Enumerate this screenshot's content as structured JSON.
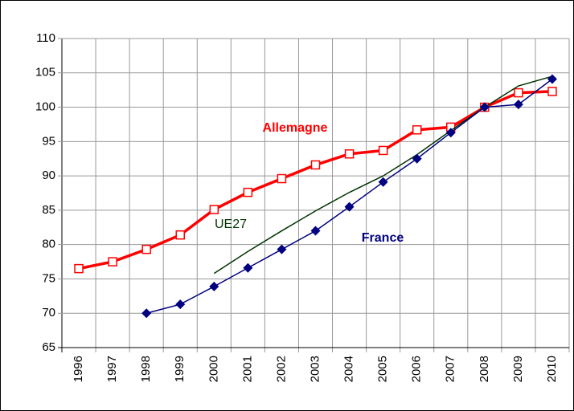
{
  "chart_data": {
    "type": "line",
    "categories": [
      "1996",
      "1997",
      "1998",
      "1999",
      "2000",
      "2001",
      "2002",
      "2003",
      "2004",
      "2005",
      "2006",
      "2007",
      "2008",
      "2009",
      "2010"
    ],
    "series": [
      {
        "name": "Allemagne",
        "color": "#ff0000",
        "marker": "square",
        "values": [
          76.5,
          77.5,
          79.3,
          81.4,
          85.1,
          87.6,
          89.6,
          91.6,
          93.2,
          93.7,
          96.7,
          97.1,
          100,
          102.1,
          102.3
        ]
      },
      {
        "name": "UE27",
        "color": "#003300",
        "marker": "none",
        "values": [
          null,
          null,
          null,
          null,
          75.8,
          79,
          82,
          84.9,
          87.6,
          90,
          93.1,
          96.6,
          100,
          103.1,
          104.5
        ]
      },
      {
        "name": "France",
        "color": "#000080",
        "marker": "diamond",
        "values": [
          null,
          null,
          70,
          71.3,
          73.9,
          76.6,
          79.3,
          82,
          85.5,
          89.1,
          92.5,
          96.3,
          100,
          100.4,
          104.1
        ]
      }
    ],
    "ylim": [
      65,
      110
    ],
    "yticks": [
      65,
      70,
      75,
      80,
      85,
      90,
      95,
      100,
      105,
      110
    ],
    "grid": true
  }
}
